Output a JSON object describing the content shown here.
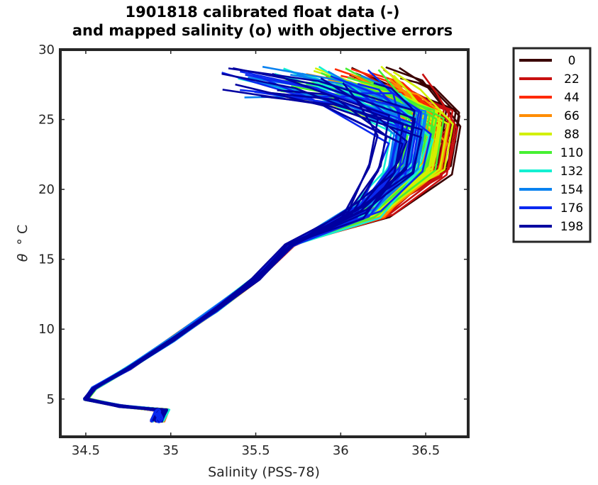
{
  "chart_data": {
    "type": "line",
    "title": [
      "1901818 calibrated float data (-)",
      "and mapped salinity (o) with objective errors"
    ],
    "xlabel": "Salinity (PSS-78)",
    "ylabel_symbol": "θ",
    "ylabel_unit": "° C",
    "xlim": [
      34.35,
      36.75
    ],
    "ylim": [
      2.3,
      30
    ],
    "xticks": [
      34.5,
      35,
      35.5,
      36,
      36.5
    ],
    "xtick_labels": [
      "34.5",
      "35",
      "35.5",
      "36",
      "36.5"
    ],
    "yticks": [
      5,
      10,
      15,
      20,
      25,
      30
    ],
    "ytick_labels": [
      "5",
      "10",
      "15",
      "20",
      "25",
      "30"
    ],
    "grid": false,
    "legend_position": "outside-right",
    "series": [
      {
        "name": "0",
        "color": "#3a0000"
      },
      {
        "name": "22",
        "color": "#c81010"
      },
      {
        "name": "44",
        "color": "#ff2a00"
      },
      {
        "name": "66",
        "color": "#ff8c00"
      },
      {
        "name": "88",
        "color": "#d2f000"
      },
      {
        "name": "110",
        "color": "#46f032"
      },
      {
        "name": "132",
        "color": "#14f0d2"
      },
      {
        "name": "154",
        "color": "#0a82f0"
      },
      {
        "name": "176",
        "color": "#0a28f0"
      },
      {
        "name": "198",
        "color": "#0000a0"
      }
    ],
    "profile_envelope": {
      "deep": [
        [
          34.92,
          3.4
        ],
        [
          34.95,
          4.2
        ],
        [
          34.7,
          4.5
        ],
        [
          34.5,
          5.0
        ],
        [
          34.55,
          5.8
        ],
        [
          34.75,
          7.2
        ],
        [
          35.0,
          9.2
        ],
        [
          35.25,
          11.3
        ],
        [
          35.5,
          13.6
        ],
        [
          35.7,
          16.0
        ]
      ],
      "upper_envelope": {
        "warm_sal": 36.55,
        "warm_temp": 24.5,
        "surface_temp_range": [
          26.5,
          28.8
        ],
        "surface_sal_range": [
          35.3,
          36.65
        ]
      }
    }
  }
}
